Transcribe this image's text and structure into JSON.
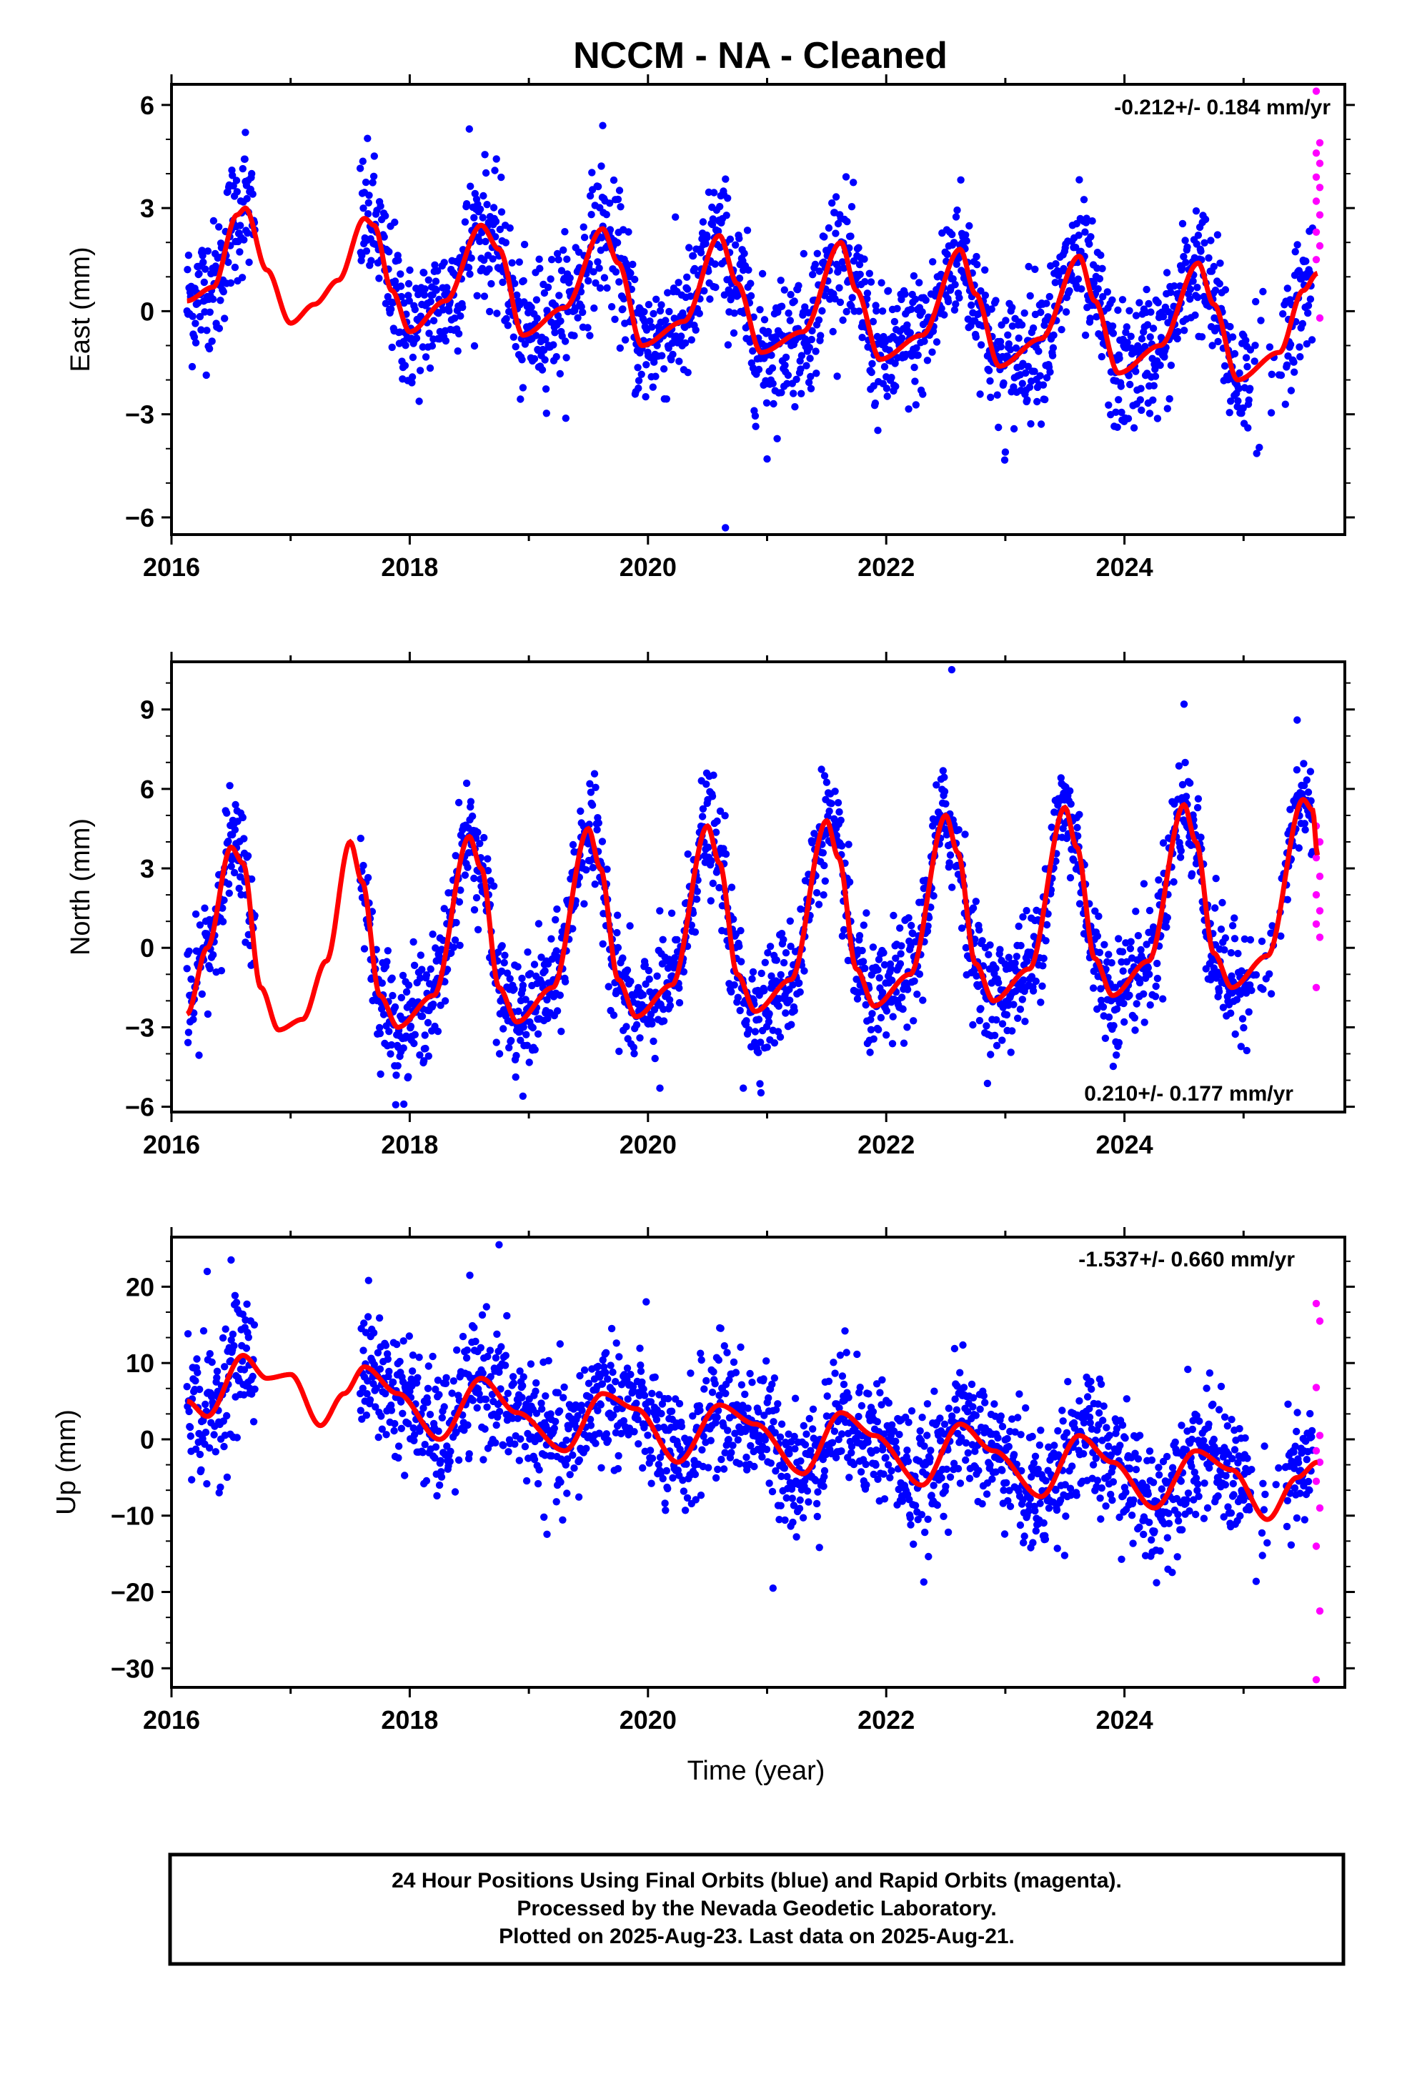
{
  "title": "NCCM  - NA - Cleaned",
  "xlabel": "Time (year)",
  "footer": [
    "24 Hour Positions Using Final Orbits (blue) and Rapid Orbits (magenta).",
    "Processed by the Nevada Geodetic Laboratory.",
    "Plotted on 2025-Aug-23. Last data on 2025-Aug-21."
  ],
  "colors": {
    "final": "#0000ff",
    "rapid": "#ff00ff",
    "model": "#ff0000",
    "frame": "#000000"
  },
  "chart_data": [
    {
      "type": "scatter",
      "ylabel": "East (mm)",
      "rate_label": "-0.212+/- 0.184 mm/yr",
      "rate_position": "top-right",
      "xlim": [
        2016.0,
        2025.85
      ],
      "ylim": [
        -6.5,
        6.6
      ],
      "xticks": [
        2016,
        2018,
        2020,
        2022,
        2024
      ],
      "yticks": [
        -6,
        -3,
        0,
        3,
        6
      ],
      "yticklabels": [
        "−6",
        "−3",
        "0",
        "3",
        "6"
      ],
      "model": {
        "rate": -0.212,
        "amp_annual": 1.9,
        "phase_peak": 0.6,
        "amp_semi": 0.45,
        "offset": 0.9,
        "ref_year": 2016.13,
        "points": [
          [
            2016.13,
            0.3
          ],
          [
            2016.35,
            0.7
          ],
          [
            2016.55,
            2.8
          ],
          [
            2016.62,
            3.0
          ],
          [
            2016.8,
            1.2
          ],
          [
            2017.0,
            -0.35
          ],
          [
            2017.2,
            0.2
          ],
          [
            2017.4,
            0.9
          ],
          [
            2017.62,
            2.7
          ],
          [
            2017.7,
            2.5
          ],
          [
            2017.85,
            0.6
          ],
          [
            2018.0,
            -0.6
          ],
          [
            2018.3,
            0.3
          ],
          [
            2018.6,
            2.5
          ],
          [
            2018.75,
            1.8
          ],
          [
            2018.95,
            -0.7
          ],
          [
            2019.3,
            0.1
          ],
          [
            2019.62,
            2.4
          ],
          [
            2019.75,
            1.4
          ],
          [
            2019.95,
            -1.0
          ],
          [
            2020.3,
            -0.3
          ],
          [
            2020.6,
            2.2
          ],
          [
            2020.75,
            0.8
          ],
          [
            2020.95,
            -1.2
          ],
          [
            2021.3,
            -0.6
          ],
          [
            2021.62,
            2.0
          ],
          [
            2021.75,
            0.6
          ],
          [
            2021.95,
            -1.4
          ],
          [
            2022.3,
            -0.7
          ],
          [
            2022.62,
            1.8
          ],
          [
            2022.75,
            0.5
          ],
          [
            2022.95,
            -1.6
          ],
          [
            2023.3,
            -0.8
          ],
          [
            2023.62,
            1.6
          ],
          [
            2023.75,
            0.3
          ],
          [
            2023.95,
            -1.8
          ],
          [
            2024.3,
            -1.0
          ],
          [
            2024.62,
            1.4
          ],
          [
            2024.75,
            0.2
          ],
          [
            2024.95,
            -2.0
          ],
          [
            2025.3,
            -1.2
          ],
          [
            2025.5,
            0.6
          ],
          [
            2025.62,
            1.1
          ]
        ]
      },
      "rapid": {
        "x_start": 2025.58,
        "x_end": 2025.64,
        "values": [
          6.4,
          4.9,
          4.6,
          4.3,
          3.9,
          3.6,
          3.2,
          2.8,
          2.3,
          1.9,
          1.5,
          -0.2
        ]
      },
      "outliers": [
        [
          2020.65,
          -6.3
        ],
        [
          2016.62,
          5.2
        ],
        [
          2018.5,
          5.3
        ],
        [
          2019.62,
          5.4
        ],
        [
          2021.0,
          -4.3
        ],
        [
          2023.0,
          -4.1
        ]
      ]
    },
    {
      "type": "scatter",
      "ylabel": "North (mm)",
      "rate_label": "0.210+/- 0.177 mm/yr",
      "rate_position": "bottom-right",
      "xlim": [
        2016.0,
        2025.85
      ],
      "ylim": [
        -6.2,
        10.8
      ],
      "xticks": [
        2016,
        2018,
        2020,
        2022,
        2024
      ],
      "yticks": [
        -6,
        -3,
        0,
        3,
        6,
        9
      ],
      "yticklabels": [
        "−6",
        "−3",
        "0",
        "3",
        "6",
        "9"
      ],
      "model": {
        "rate": 0.21,
        "amp_annual": 3.5,
        "phase_peak": 0.5,
        "amp_semi": 0.6,
        "offset": 0.7,
        "ref_year": 2016.13,
        "points": [
          [
            2016.13,
            -2.5
          ],
          [
            2016.3,
            0.0
          ],
          [
            2016.5,
            3.8
          ],
          [
            2016.6,
            3.2
          ],
          [
            2016.75,
            -1.5
          ],
          [
            2016.9,
            -3.1
          ],
          [
            2017.1,
            -2.7
          ],
          [
            2017.3,
            -0.5
          ],
          [
            2017.5,
            4.0
          ],
          [
            2017.6,
            2.5
          ],
          [
            2017.75,
            -1.8
          ],
          [
            2017.9,
            -3.0
          ],
          [
            2018.2,
            -1.8
          ],
          [
            2018.5,
            4.2
          ],
          [
            2018.6,
            3.0
          ],
          [
            2018.75,
            -1.5
          ],
          [
            2018.9,
            -2.8
          ],
          [
            2019.2,
            -1.5
          ],
          [
            2019.5,
            4.5
          ],
          [
            2019.6,
            3.0
          ],
          [
            2019.75,
            -1.2
          ],
          [
            2019.9,
            -2.6
          ],
          [
            2020.2,
            -1.4
          ],
          [
            2020.5,
            4.6
          ],
          [
            2020.6,
            3.2
          ],
          [
            2020.75,
            -1.0
          ],
          [
            2020.9,
            -2.4
          ],
          [
            2021.2,
            -1.2
          ],
          [
            2021.5,
            4.8
          ],
          [
            2021.6,
            3.4
          ],
          [
            2021.75,
            -0.8
          ],
          [
            2021.9,
            -2.2
          ],
          [
            2022.2,
            -1.0
          ],
          [
            2022.5,
            5.0
          ],
          [
            2022.6,
            3.6
          ],
          [
            2022.75,
            -0.6
          ],
          [
            2022.9,
            -2.0
          ],
          [
            2023.2,
            -0.8
          ],
          [
            2023.5,
            5.3
          ],
          [
            2023.6,
            3.8
          ],
          [
            2023.75,
            -0.4
          ],
          [
            2023.9,
            -1.8
          ],
          [
            2024.2,
            -0.5
          ],
          [
            2024.5,
            5.4
          ],
          [
            2024.6,
            4.0
          ],
          [
            2024.75,
            -0.2
          ],
          [
            2024.9,
            -1.5
          ],
          [
            2025.2,
            -0.3
          ],
          [
            2025.5,
            5.6
          ],
          [
            2025.58,
            5.2
          ],
          [
            2025.62,
            3.5
          ]
        ]
      },
      "rapid": {
        "x_start": 2025.58,
        "x_end": 2025.64,
        "values": [
          4.6,
          4.0,
          3.4,
          2.7,
          2.0,
          1.4,
          0.9,
          0.4,
          -1.5
        ]
      },
      "outliers": [
        [
          2022.55,
          10.5
        ],
        [
          2025.45,
          8.6
        ],
        [
          2024.5,
          9.2
        ],
        [
          2017.95,
          -5.9
        ],
        [
          2018.95,
          -5.6
        ],
        [
          2020.1,
          -5.3
        ],
        [
          2020.8,
          -5.3
        ]
      ]
    },
    {
      "type": "scatter",
      "ylabel": "Up (mm)",
      "rate_label": "-1.537+/- 0.660 mm/yr",
      "rate_position": "top-right",
      "xlim": [
        2016.0,
        2025.85
      ],
      "ylim": [
        -32.5,
        26.5
      ],
      "xticks": [
        2016,
        2018,
        2020,
        2022,
        2024
      ],
      "yticks": [
        -30,
        -20,
        -10,
        0,
        10,
        20
      ],
      "yticklabels": [
        "−30",
        "−20",
        "−10",
        "0",
        "10",
        "20"
      ],
      "model": {
        "rate": -1.537,
        "amp_annual": 3.5,
        "phase_peak": 0.6,
        "amp_semi": 1.5,
        "offset": 6.5,
        "ref_year": 2016.13,
        "points": [
          [
            2016.13,
            5.0
          ],
          [
            2016.3,
            3.0
          ],
          [
            2016.6,
            11.0
          ],
          [
            2016.8,
            8.0
          ],
          [
            2017.0,
            8.5
          ],
          [
            2017.25,
            1.8
          ],
          [
            2017.45,
            6.0
          ],
          [
            2017.62,
            9.5
          ],
          [
            2017.9,
            6.0
          ],
          [
            2018.25,
            0.0
          ],
          [
            2018.6,
            8.0
          ],
          [
            2018.9,
            3.5
          ],
          [
            2019.3,
            -1.5
          ],
          [
            2019.62,
            6.0
          ],
          [
            2019.9,
            4.0
          ],
          [
            2020.25,
            -3.0
          ],
          [
            2020.6,
            4.5
          ],
          [
            2020.9,
            2.0
          ],
          [
            2021.3,
            -4.5
          ],
          [
            2021.62,
            3.5
          ],
          [
            2021.9,
            0.5
          ],
          [
            2022.3,
            -6.0
          ],
          [
            2022.62,
            2.0
          ],
          [
            2022.9,
            -1.5
          ],
          [
            2023.3,
            -7.5
          ],
          [
            2023.62,
            0.5
          ],
          [
            2023.9,
            -3.0
          ],
          [
            2024.25,
            -9.0
          ],
          [
            2024.6,
            -1.5
          ],
          [
            2024.9,
            -4.0
          ],
          [
            2025.2,
            -10.5
          ],
          [
            2025.45,
            -5.0
          ],
          [
            2025.62,
            -3.0
          ]
        ]
      },
      "rapid": {
        "x_start": 2025.58,
        "x_end": 2025.64,
        "values": [
          17.8,
          15.5,
          6.8,
          0.5,
          -1.5,
          -3.0,
          -5.5,
          -9.0,
          -14.0,
          -22.5,
          -31.5
        ]
      },
      "outliers": [
        [
          2018.75,
          25.5
        ],
        [
          2016.5,
          23.5
        ],
        [
          2016.3,
          22.0
        ],
        [
          2021.05,
          -19.5
        ],
        [
          2016.4,
          -7.0
        ]
      ]
    }
  ]
}
